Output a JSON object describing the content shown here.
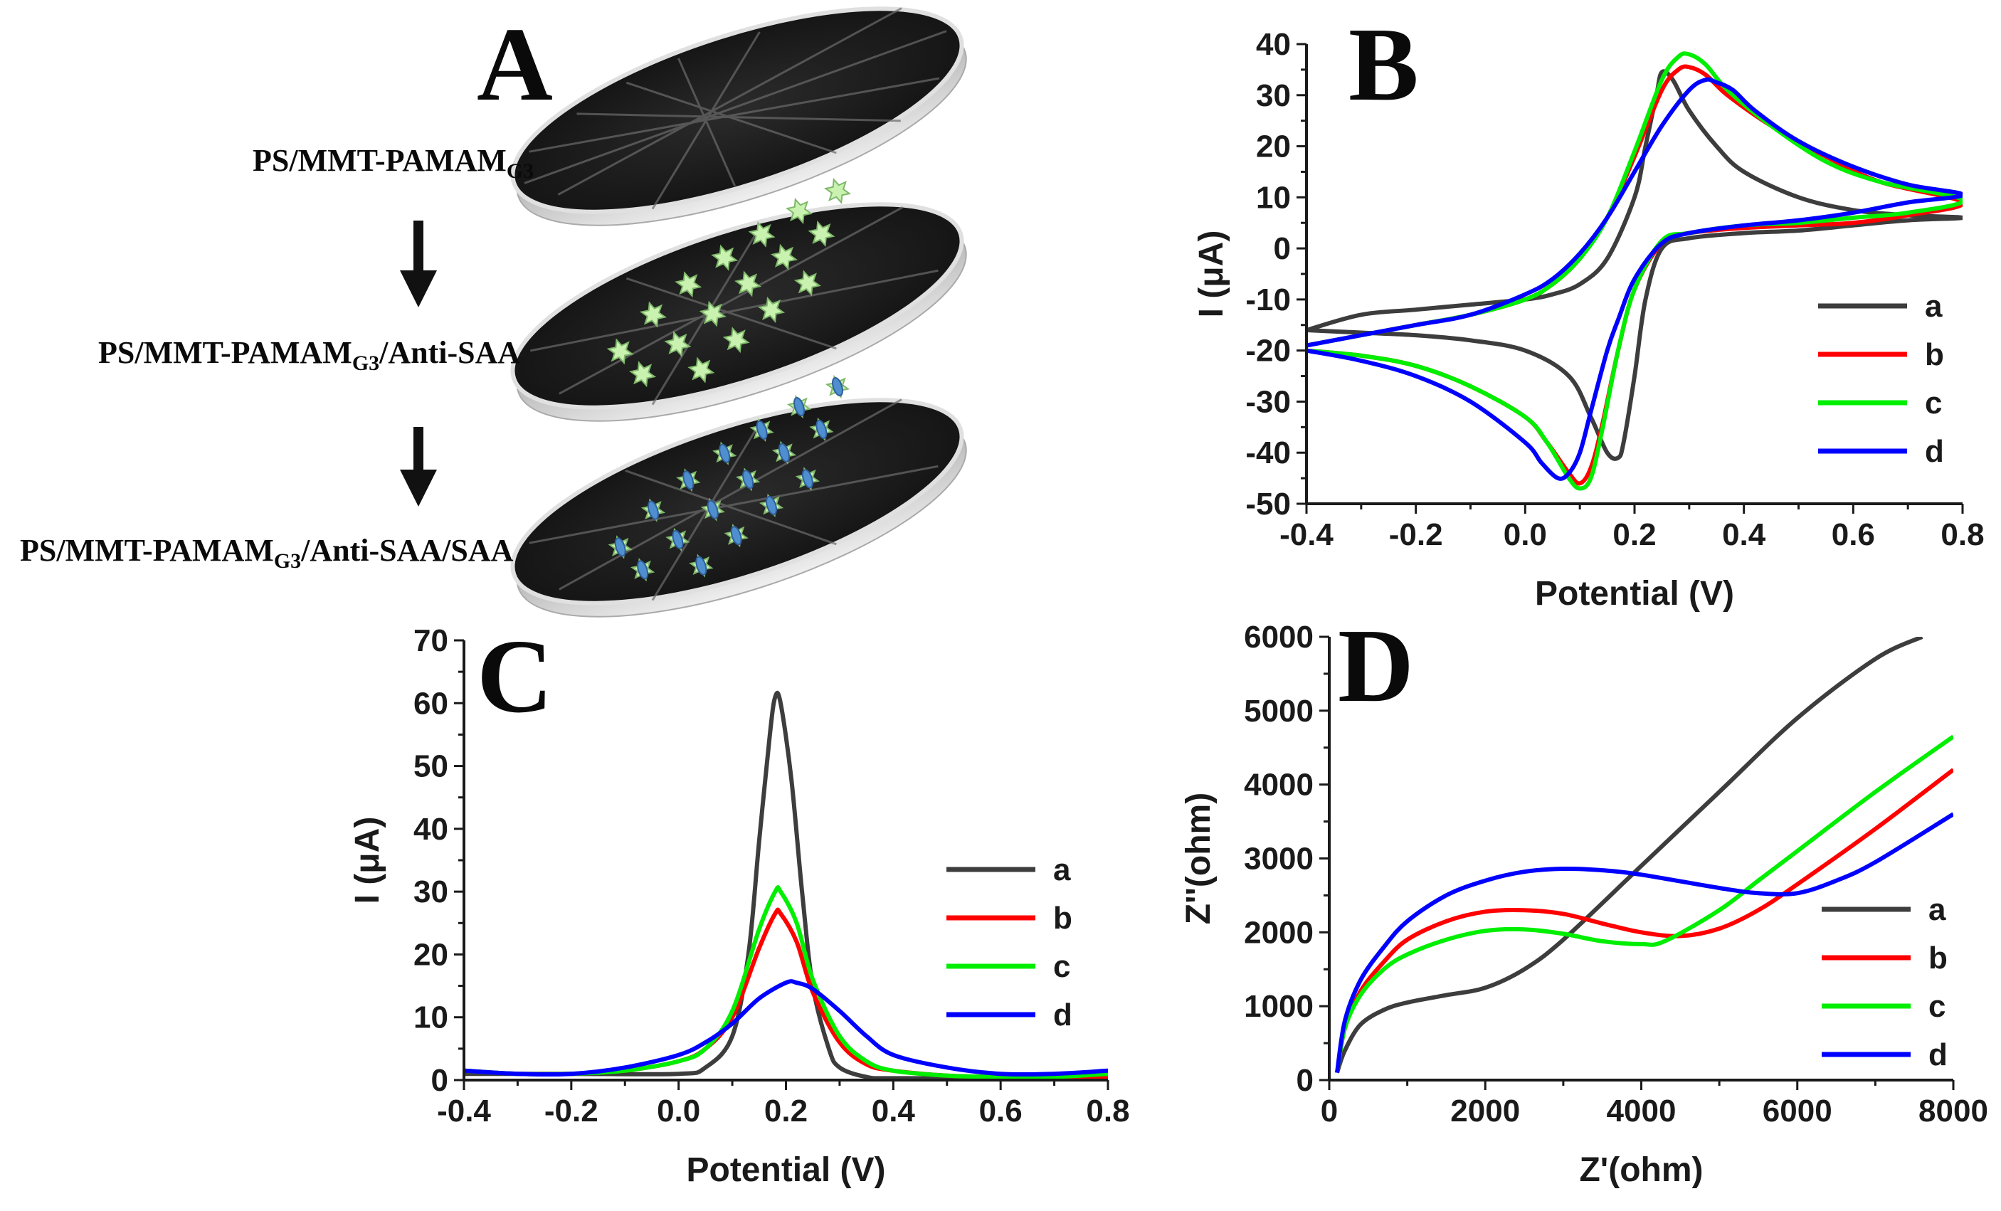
{
  "panels": {
    "A": {
      "letter": "A"
    },
    "B": {
      "letter": "B"
    },
    "C": {
      "letter": "C"
    },
    "D": {
      "letter": "D"
    }
  },
  "scheme": {
    "step1": {
      "main": "PS/MMT-PAMAM",
      "sub": "G3",
      "rest": ""
    },
    "step2": {
      "main": "PS/MMT-PAMAM",
      "sub": "G3",
      "rest": "/Anti-SAA"
    },
    "step3": {
      "main": "PS/MMT-PAMAM",
      "sub": "G3",
      "rest": "/Anti-SAA/SAA"
    }
  },
  "colors": {
    "a": "#3d3d3d",
    "b": "#ff0000",
    "c": "#00ee00",
    "d": "#0000ff"
  },
  "chart_data": [
    {
      "panel": "B",
      "type": "line",
      "title": "",
      "xlabel": "Potential (V)",
      "ylabel": "I (μA)",
      "xlim": [
        -0.4,
        0.8
      ],
      "ylim": [
        -50,
        40
      ],
      "xticks": [
        -0.4,
        -0.2,
        0.0,
        0.2,
        0.4,
        0.6,
        0.8
      ],
      "yticks": [
        -50,
        -40,
        -30,
        -20,
        -10,
        0,
        10,
        20,
        30,
        40
      ],
      "xtick_labels": [
        "-0.4",
        "-0.2",
        "0.0",
        "0.2",
        "0.4",
        "0.6",
        "0.8"
      ],
      "ytick_labels": [
        "-50",
        "-40",
        "-30",
        "-20",
        "-10",
        "0",
        "10",
        "20",
        "30",
        "40"
      ],
      "legend": [
        "a",
        "b",
        "c",
        "d"
      ],
      "legend_position": "right",
      "series": [
        {
          "name": "a",
          "x": [
            -0.4,
            -0.3,
            -0.2,
            -0.1,
            0.0,
            0.05,
            0.1,
            0.15,
            0.2,
            0.22,
            0.24,
            0.25,
            0.27,
            0.3,
            0.35,
            0.4,
            0.5,
            0.6,
            0.7,
            0.8,
            0.7,
            0.6,
            0.5,
            0.4,
            0.3,
            0.25,
            0.22,
            0.2,
            0.18,
            0.17,
            0.15,
            0.12,
            0.08,
            0.0,
            -0.1,
            -0.2,
            -0.3,
            -0.4
          ],
          "y": [
            -16,
            -13,
            -12,
            -11,
            -10,
            -9,
            -7,
            -2,
            10,
            20,
            30,
            34.5,
            33,
            27,
            20,
            15,
            10,
            7.5,
            6.5,
            6,
            5.5,
            4.5,
            3.5,
            3,
            2,
            0,
            -10,
            -25,
            -38,
            -41,
            -40,
            -33,
            -25,
            -20,
            -18,
            -17,
            -16.5,
            -16
          ]
        },
        {
          "name": "b",
          "x": [
            -0.4,
            -0.3,
            -0.2,
            -0.1,
            0.0,
            0.05,
            0.1,
            0.15,
            0.2,
            0.25,
            0.28,
            0.3,
            0.33,
            0.37,
            0.45,
            0.55,
            0.65,
            0.8,
            0.7,
            0.6,
            0.5,
            0.4,
            0.3,
            0.25,
            0.2,
            0.17,
            0.14,
            0.12,
            0.1,
            0.08,
            0.04,
            0.0,
            -0.1,
            -0.2,
            -0.3,
            -0.4
          ],
          "y": [
            -19,
            -17,
            -15,
            -13,
            -10,
            -7,
            -2,
            6,
            18,
            31,
            35,
            35.5,
            34,
            30,
            24,
            18,
            13,
            9,
            6.5,
            5,
            4.5,
            4,
            3,
            1,
            -8,
            -20,
            -35,
            -43,
            -46,
            -44,
            -38,
            -33,
            -27,
            -23,
            -21,
            -20
          ]
        },
        {
          "name": "c",
          "x": [
            -0.4,
            -0.3,
            -0.2,
            -0.1,
            0.0,
            0.05,
            0.1,
            0.15,
            0.2,
            0.25,
            0.28,
            0.3,
            0.33,
            0.37,
            0.45,
            0.55,
            0.65,
            0.8,
            0.7,
            0.6,
            0.5,
            0.4,
            0.3,
            0.25,
            0.2,
            0.17,
            0.14,
            0.12,
            0.1,
            0.08,
            0.04,
            0.0,
            -0.1,
            -0.2,
            -0.3,
            -0.4
          ],
          "y": [
            -19,
            -17,
            -15,
            -13,
            -10,
            -7,
            -2,
            6,
            19,
            33,
            37.5,
            38,
            36,
            31,
            24,
            17,
            13,
            9.5,
            7,
            6,
            5,
            4.5,
            3,
            1.5,
            -8,
            -20,
            -36,
            -45,
            -47,
            -45,
            -38,
            -33,
            -27,
            -23,
            -21,
            -20
          ]
        },
        {
          "name": "d",
          "x": [
            -0.4,
            -0.3,
            -0.2,
            -0.1,
            0.0,
            0.05,
            0.1,
            0.15,
            0.2,
            0.25,
            0.3,
            0.33,
            0.35,
            0.38,
            0.42,
            0.5,
            0.6,
            0.7,
            0.8,
            0.7,
            0.6,
            0.5,
            0.4,
            0.3,
            0.25,
            0.2,
            0.17,
            0.15,
            0.12,
            0.1,
            0.08,
            0.06,
            0.03,
            0.0,
            -0.1,
            -0.2,
            -0.3,
            -0.4
          ],
          "y": [
            -19,
            -17,
            -15,
            -13,
            -9,
            -6,
            -1,
            6,
            15,
            24,
            31,
            33,
            32.5,
            31,
            27,
            21,
            16,
            12.5,
            10.5,
            9,
            7,
            5.5,
            4.5,
            3,
            1,
            -6,
            -14,
            -20,
            -32,
            -40,
            -44,
            -45,
            -42,
            -38,
            -30,
            -25,
            -22,
            -20
          ]
        }
      ]
    },
    {
      "panel": "C",
      "type": "line",
      "title": "",
      "xlabel": "Potential (V)",
      "ylabel": "I (μA)",
      "xlim": [
        -0.4,
        0.8
      ],
      "ylim": [
        0,
        70
      ],
      "xticks": [
        -0.4,
        -0.2,
        0.0,
        0.2,
        0.4,
        0.6,
        0.8
      ],
      "yticks": [
        0,
        10,
        20,
        30,
        40,
        50,
        60,
        70
      ],
      "xtick_labels": [
        "-0.4",
        "-0.2",
        "0.0",
        "0.2",
        "0.4",
        "0.6",
        "0.8"
      ],
      "ytick_labels": [
        "0",
        "10",
        "20",
        "30",
        "40",
        "50",
        "60",
        "70"
      ],
      "legend": [
        "a",
        "b",
        "c",
        "d"
      ],
      "legend_position": "right",
      "series": [
        {
          "name": "a",
          "x": [
            -0.4,
            -0.2,
            0.0,
            0.05,
            0.1,
            0.13,
            0.15,
            0.17,
            0.18,
            0.19,
            0.21,
            0.23,
            0.25,
            0.28,
            0.3,
            0.35,
            0.4,
            0.6,
            0.8
          ],
          "y": [
            1,
            1,
            1,
            2,
            7,
            20,
            38,
            55,
            61,
            60,
            48,
            30,
            15,
            5,
            2,
            0.5,
            0.3,
            0.3,
            0.5
          ]
        },
        {
          "name": "b",
          "x": [
            -0.4,
            -0.3,
            -0.2,
            -0.1,
            0.0,
            0.05,
            0.1,
            0.15,
            0.18,
            0.19,
            0.22,
            0.25,
            0.3,
            0.35,
            0.4,
            0.5,
            0.6,
            0.7,
            0.8
          ],
          "y": [
            1.5,
            1,
            1,
            1.5,
            3,
            5,
            10,
            21,
            26.5,
            26.5,
            22,
            14,
            6,
            2.5,
            1.5,
            0.7,
            0.5,
            0.5,
            0.5
          ]
        },
        {
          "name": "c",
          "x": [
            -0.4,
            -0.3,
            -0.2,
            -0.1,
            0.0,
            0.05,
            0.1,
            0.15,
            0.18,
            0.19,
            0.22,
            0.25,
            0.3,
            0.35,
            0.4,
            0.5,
            0.6,
            0.7,
            0.8
          ],
          "y": [
            1.5,
            1,
            1,
            1.5,
            3,
            5,
            11,
            24,
            30,
            30,
            25,
            16,
            7,
            3,
            1.5,
            0.7,
            0.5,
            0.5,
            1
          ]
        },
        {
          "name": "d",
          "x": [
            -0.4,
            -0.3,
            -0.2,
            -0.1,
            0.0,
            0.05,
            0.1,
            0.15,
            0.2,
            0.22,
            0.25,
            0.3,
            0.35,
            0.4,
            0.5,
            0.6,
            0.7,
            0.8
          ],
          "y": [
            1.5,
            1,
            1,
            2,
            4,
            6,
            9,
            13,
            15.5,
            15.5,
            14.5,
            11,
            7,
            4,
            2,
            1,
            1,
            1.5
          ]
        }
      ]
    },
    {
      "panel": "D",
      "type": "line",
      "title": "",
      "xlabel": "Z'(ohm)",
      "ylabel": "Z''(ohm)",
      "xlim": [
        0,
        8000
      ],
      "ylim": [
        0,
        6000
      ],
      "xticks": [
        0,
        2000,
        4000,
        6000,
        8000
      ],
      "yticks": [
        0,
        1000,
        2000,
        3000,
        4000,
        5000,
        6000
      ],
      "xtick_labels": [
        "0",
        "2000",
        "4000",
        "6000",
        "8000"
      ],
      "ytick_labels": [
        "0",
        "1000",
        "2000",
        "3000",
        "4000",
        "5000",
        "6000"
      ],
      "legend": [
        "a",
        "b",
        "c",
        "d"
      ],
      "legend_position": "right",
      "series": [
        {
          "name": "a",
          "x": [
            100,
            200,
            400,
            700,
            1000,
            1500,
            2000,
            2500,
            3000,
            4000,
            5000,
            6000,
            7000,
            7600
          ],
          "y": [
            100,
            400,
            750,
            950,
            1050,
            1150,
            1250,
            1500,
            1900,
            2900,
            3900,
            4900,
            5700,
            6000
          ]
        },
        {
          "name": "b",
          "x": [
            100,
            200,
            400,
            700,
            1000,
            1500,
            2000,
            2500,
            3000,
            3500,
            4000,
            4500,
            5000,
            5500,
            6000,
            7000,
            8000
          ],
          "y": [
            100,
            700,
            1200,
            1600,
            1900,
            2150,
            2280,
            2300,
            2250,
            2120,
            2000,
            1950,
            2050,
            2300,
            2650,
            3400,
            4200
          ]
        },
        {
          "name": "c",
          "x": [
            100,
            200,
            400,
            700,
            1000,
            1500,
            2000,
            2500,
            3000,
            3500,
            4000,
            4300,
            5000,
            5500,
            6000,
            7000,
            8000
          ],
          "y": [
            100,
            700,
            1150,
            1500,
            1700,
            1900,
            2020,
            2040,
            1980,
            1880,
            1840,
            1880,
            2300,
            2700,
            3100,
            3900,
            4650
          ]
        },
        {
          "name": "d",
          "x": [
            100,
            200,
            400,
            700,
            1000,
            1500,
            2000,
            2500,
            3000,
            3500,
            4000,
            5000,
            5500,
            6000,
            6500,
            7000,
            8000
          ],
          "y": [
            100,
            800,
            1350,
            1800,
            2150,
            2500,
            2700,
            2820,
            2860,
            2840,
            2780,
            2600,
            2530,
            2530,
            2700,
            2950,
            3600
          ]
        }
      ]
    }
  ]
}
